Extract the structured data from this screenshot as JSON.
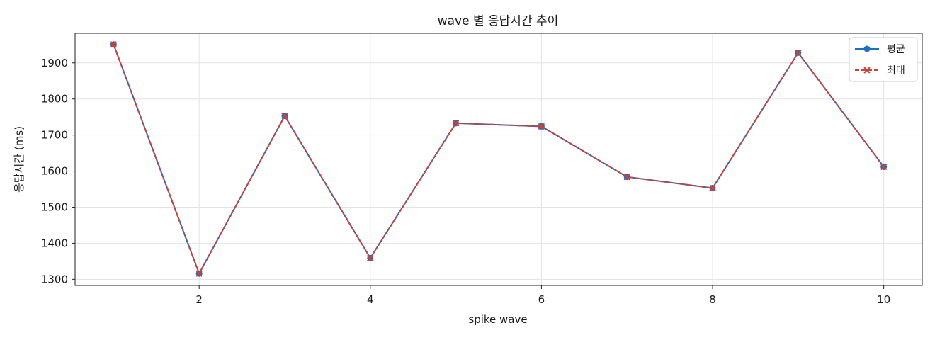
{
  "chart_data": {
    "type": "line",
    "title": "wave 별 응답시간 추이",
    "xlabel": "spike wave",
    "ylabel": "응답시간 (ms)",
    "x": [
      1,
      2,
      3,
      4,
      5,
      6,
      7,
      8,
      9,
      10
    ],
    "series": [
      {
        "name": "평균",
        "values": [
          1951,
          1316,
          1753,
          1359,
          1733,
          1724,
          1584,
          1553,
          1928,
          1612
        ],
        "color": "#1f6fc0",
        "marker": "circle",
        "line_style": "solid"
      },
      {
        "name": "최대",
        "values": [
          1951,
          1316,
          1753,
          1359,
          1733,
          1724,
          1584,
          1553,
          1928,
          1612
        ],
        "color": "#d0403a",
        "marker": "x",
        "line_style": "dashed"
      }
    ],
    "xlim": [
      0.55,
      10.45
    ],
    "ylim": [
      1283,
      1982
    ],
    "xticks": [
      2,
      4,
      6,
      8,
      10
    ],
    "xtick_labels": [
      "2",
      "4",
      "6",
      "8",
      "10"
    ],
    "yticks": [
      1300,
      1400,
      1500,
      1600,
      1700,
      1800,
      1900
    ],
    "ytick_labels": [
      "1300",
      "1400",
      "1500",
      "1600",
      "1700",
      "1800",
      "1900"
    ],
    "grid": true,
    "legend_position": "top-right"
  }
}
